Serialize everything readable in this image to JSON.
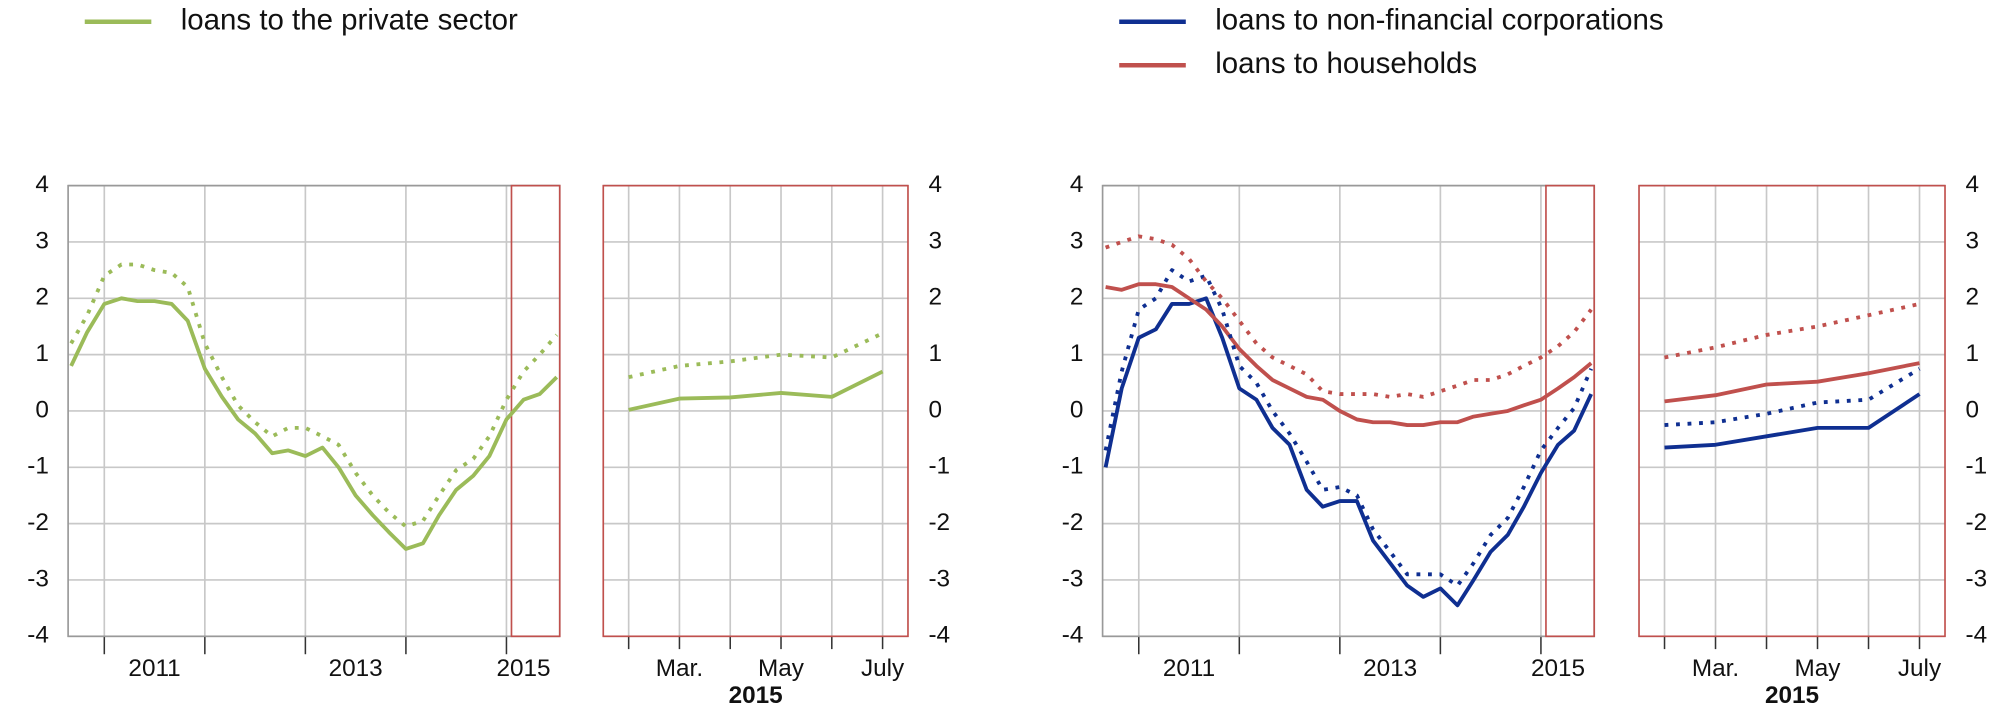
{
  "chart_data": [
    {
      "type": "line",
      "legend": "top-left",
      "yaxis_side": "left",
      "frame_color": "#999999",
      "xlim": [
        2010.64,
        2015.53
      ],
      "ylim": [
        -4,
        4
      ],
      "yticks": [
        -4,
        -3,
        -2,
        -1,
        0,
        1,
        2,
        3,
        4
      ],
      "xticks": [
        {
          "value": 2011.5,
          "label": "2011"
        },
        {
          "value": 2013.5,
          "label": "2013"
        },
        {
          "value": 2015.17,
          "label": "2015"
        }
      ],
      "xgrid": [
        2011,
        2012,
        2013,
        2014,
        2015
      ],
      "highlight": [
        2015.05,
        2015.53
      ],
      "highlight_color": "#c0504d",
      "x": [
        2010.67,
        2010.83,
        2011.0,
        2011.17,
        2011.33,
        2011.5,
        2011.67,
        2011.83,
        2012.0,
        2012.17,
        2012.33,
        2012.5,
        2012.67,
        2012.83,
        2013.0,
        2013.17,
        2013.33,
        2013.5,
        2013.67,
        2013.83,
        2014.0,
        2014.17,
        2014.33,
        2014.5,
        2014.67,
        2014.83,
        2015.0,
        2015.17,
        2015.33,
        2015.5
      ],
      "series": [
        {
          "name": "loans to the private sector",
          "color": "#9bbb59",
          "style": "solid",
          "values": [
            0.8,
            1.4,
            1.9,
            2.0,
            1.95,
            1.95,
            1.9,
            1.6,
            0.75,
            0.25,
            -0.15,
            -0.4,
            -0.75,
            -0.7,
            -0.8,
            -0.65,
            -1.0,
            -1.5,
            -1.85,
            -2.15,
            -2.45,
            -2.35,
            -1.85,
            -1.4,
            -1.15,
            -0.8,
            -0.15,
            0.2,
            0.3,
            0.6
          ]
        },
        {
          "color": "#9bbb59",
          "style": "dotted",
          "values": [
            1.2,
            1.7,
            2.4,
            2.6,
            2.6,
            2.5,
            2.45,
            2.2,
            1.2,
            0.6,
            0.1,
            -0.2,
            -0.45,
            -0.3,
            -0.3,
            -0.45,
            -0.6,
            -1.1,
            -1.5,
            -1.8,
            -2.05,
            -1.95,
            -1.5,
            -1.05,
            -0.85,
            -0.45,
            0.2,
            0.7,
            1.0,
            1.35
          ]
        }
      ]
    },
    {
      "type": "line",
      "yaxis_side": "right",
      "frame_color": "#c0504d",
      "categories": [
        null,
        "Mar.",
        null,
        "May",
        null,
        "July"
      ],
      "xlabel": "2015",
      "ylim": [
        -4,
        4
      ],
      "yticks": [
        -4,
        -3,
        -2,
        -1,
        0,
        1,
        2,
        3,
        4
      ],
      "series": [
        {
          "color": "#9bbb59",
          "style": "solid",
          "values": [
            0.02,
            0.22,
            0.24,
            0.32,
            0.25,
            0.7
          ]
        },
        {
          "color": "#9bbb59",
          "style": "dotted",
          "values": [
            0.6,
            0.8,
            0.88,
            1.0,
            0.95,
            1.38
          ]
        }
      ]
    },
    {
      "type": "line",
      "legend": "top-left",
      "yaxis_side": "left",
      "frame_color": "#999999",
      "xlim": [
        2010.64,
        2015.53
      ],
      "ylim": [
        -4,
        4
      ],
      "yticks": [
        -4,
        -3,
        -2,
        -1,
        0,
        1,
        2,
        3,
        4
      ],
      "xticks": [
        {
          "value": 2011.5,
          "label": "2011"
        },
        {
          "value": 2013.5,
          "label": "2013"
        },
        {
          "value": 2015.17,
          "label": "2015"
        }
      ],
      "xgrid": [
        2011,
        2012,
        2013,
        2014,
        2015
      ],
      "highlight": [
        2015.05,
        2015.53
      ],
      "highlight_color": "#c0504d",
      "x": [
        2010.67,
        2010.83,
        2011.0,
        2011.17,
        2011.33,
        2011.5,
        2011.67,
        2011.83,
        2012.0,
        2012.17,
        2012.33,
        2012.5,
        2012.67,
        2012.83,
        2013.0,
        2013.17,
        2013.33,
        2013.5,
        2013.67,
        2013.83,
        2014.0,
        2014.17,
        2014.33,
        2014.5,
        2014.67,
        2014.83,
        2015.0,
        2015.17,
        2015.33,
        2015.5
      ],
      "series": [
        {
          "name": "loans to non-financial corporations",
          "color": "#0f2f91",
          "style": "solid",
          "values": [
            -1.0,
            0.4,
            1.3,
            1.45,
            1.9,
            1.9,
            2.0,
            1.3,
            0.4,
            0.2,
            -0.3,
            -0.6,
            -1.4,
            -1.7,
            -1.6,
            -1.6,
            -2.3,
            -2.7,
            -3.1,
            -3.3,
            -3.15,
            -3.45,
            -3.0,
            -2.5,
            -2.2,
            -1.7,
            -1.1,
            -0.6,
            -0.35,
            0.3
          ]
        },
        {
          "name": "loans to households",
          "color": "#c0504d",
          "style": "solid",
          "values": [
            2.2,
            2.15,
            2.25,
            2.25,
            2.2,
            2.0,
            1.8,
            1.5,
            1.1,
            0.8,
            0.55,
            0.4,
            0.25,
            0.2,
            0.0,
            -0.15,
            -0.2,
            -0.2,
            -0.25,
            -0.25,
            -0.2,
            -0.2,
            -0.1,
            -0.05,
            0.0,
            0.1,
            0.2,
            0.4,
            0.6,
            0.85
          ]
        },
        {
          "color": "#0f2f91",
          "style": "dotted",
          "values": [
            -0.7,
            0.7,
            1.8,
            2.0,
            2.5,
            2.3,
            2.4,
            1.8,
            0.8,
            0.5,
            0.0,
            -0.4,
            -0.9,
            -1.4,
            -1.35,
            -1.5,
            -2.1,
            -2.5,
            -2.9,
            -2.9,
            -2.9,
            -3.1,
            -2.7,
            -2.2,
            -1.9,
            -1.35,
            -0.7,
            -0.3,
            0.05,
            0.75
          ]
        },
        {
          "color": "#c0504d",
          "style": "dotted",
          "values": [
            2.9,
            3.0,
            3.1,
            3.05,
            2.95,
            2.7,
            2.3,
            2.0,
            1.6,
            1.2,
            0.95,
            0.8,
            0.65,
            0.35,
            0.3,
            0.3,
            0.3,
            0.25,
            0.3,
            0.25,
            0.35,
            0.45,
            0.55,
            0.55,
            0.65,
            0.8,
            0.95,
            1.15,
            1.4,
            1.8
          ]
        }
      ]
    },
    {
      "type": "line",
      "yaxis_side": "right",
      "frame_color": "#c0504d",
      "categories": [
        null,
        "Mar.",
        null,
        "May",
        null,
        "July"
      ],
      "xlabel": "2015",
      "ylim": [
        -4,
        4
      ],
      "yticks": [
        -4,
        -3,
        -2,
        -1,
        0,
        1,
        2,
        3,
        4
      ],
      "series": [
        {
          "color": "#c0504d",
          "style": "solid",
          "values": [
            0.17,
            0.28,
            0.47,
            0.52,
            0.67,
            0.85
          ]
        },
        {
          "color": "#c0504d",
          "style": "dotted",
          "values": [
            0.95,
            1.13,
            1.35,
            1.5,
            1.7,
            1.9
          ]
        },
        {
          "color": "#0f2f91",
          "style": "solid",
          "values": [
            -0.65,
            -0.6,
            -0.45,
            -0.3,
            -0.3,
            0.3
          ]
        },
        {
          "color": "#0f2f91",
          "style": "dotted",
          "values": [
            -0.25,
            -0.2,
            -0.05,
            0.15,
            0.2,
            0.75
          ]
        }
      ]
    }
  ]
}
